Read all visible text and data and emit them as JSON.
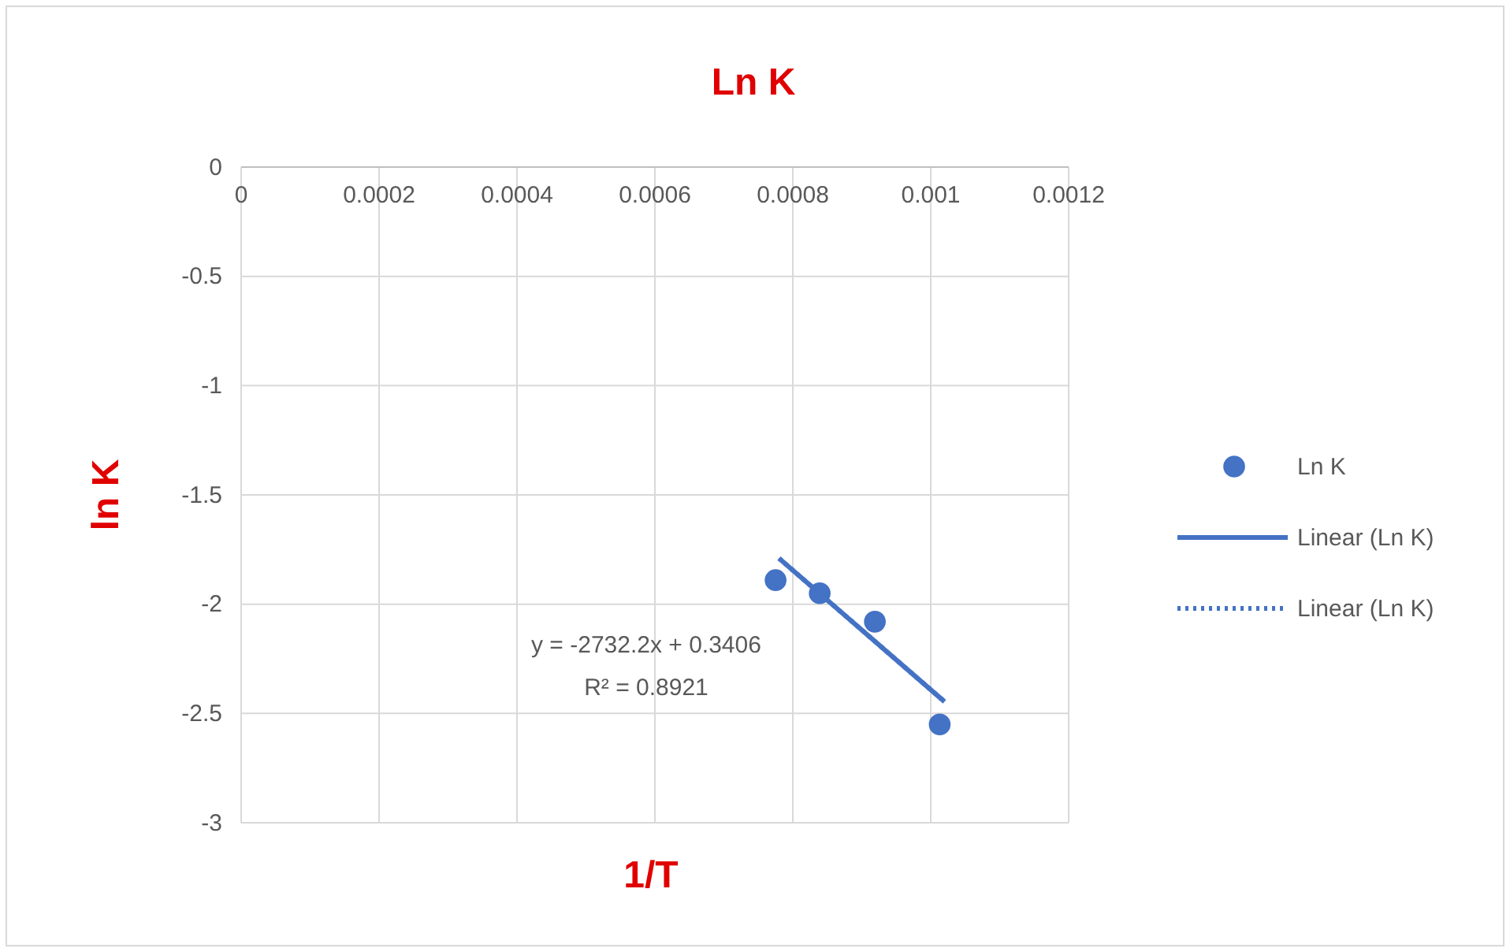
{
  "chart_data": {
    "type": "scatter",
    "title": "Ln K",
    "xlabel": "1/T",
    "ylabel": "ln K",
    "xlim": [
      0,
      0.0012
    ],
    "xticks": [
      0,
      0.0002,
      0.0004,
      0.0006,
      0.0008,
      0.001,
      0.0012
    ],
    "ylim": [
      -3,
      0
    ],
    "yticks": [
      0,
      -0.5,
      -1,
      -1.5,
      -2,
      -2.5,
      -3
    ],
    "grid": true,
    "legend": "right",
    "series": [
      {
        "name": "Ln K",
        "marker": "circle",
        "color": "#4472c4",
        "x": [
          0.000775,
          0.000839,
          0.000919,
          0.001013
        ],
        "values": [
          -1.89,
          -1.95,
          -2.08,
          -2.55
        ]
      },
      {
        "name": "Linear (Ln K)",
        "type": "line",
        "line_style": "solid",
        "color": "#4472c4",
        "x": [
          0.00078,
          0.00102
        ],
        "values": [
          -1.79,
          -2.446
        ]
      },
      {
        "name": "Linear (Ln K)",
        "type": "line",
        "line_style": "dotted",
        "color": "#4472c4",
        "x": [
          0.00078,
          0.00102
        ],
        "values": [
          -1.79,
          -2.446
        ]
      }
    ],
    "annotations": [
      "y = -2732.2x + 0.3406",
      "R² = 0.8921"
    ]
  }
}
